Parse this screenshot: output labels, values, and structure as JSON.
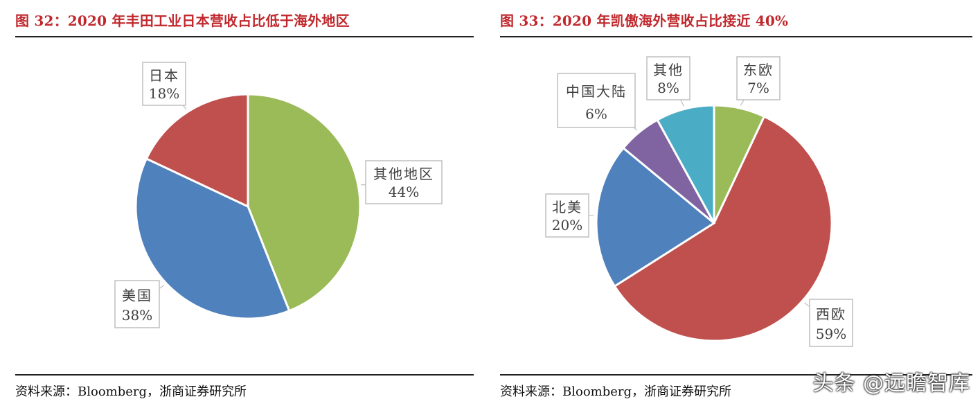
{
  "figures": [
    {
      "title": "图 32：2020 年丰田工业日本营收占比低于海外地区",
      "source": "资料来源：Bloomberg，浙商证券研究所"
    },
    {
      "title": "图 33：2020 年凯傲海外营收占比接近 40%",
      "source": "资料来源：Bloomberg，浙商证券研究所"
    }
  ],
  "chart_data": [
    {
      "type": "pie",
      "title": "图 32：2020 年丰田工业日本营收占比低于海外地区",
      "slices": [
        {
          "label": "其他地区",
          "value": 44,
          "value_label": "44%",
          "color": "#9bbb59"
        },
        {
          "label": "美国",
          "value": 38,
          "value_label": "38%",
          "color": "#4f81bd"
        },
        {
          "label": "日本",
          "value": 18,
          "value_label": "18%",
          "color": "#c0504d"
        }
      ]
    },
    {
      "type": "pie",
      "title": "图 33：2020 年凯傲海外营收占比接近 40%",
      "slices": [
        {
          "label": "东欧",
          "value": 7,
          "value_label": "7%",
          "color": "#9bbb59"
        },
        {
          "label": "西欧",
          "value": 59,
          "value_label": "59%",
          "color": "#c0504d"
        },
        {
          "label": "北美",
          "value": 20,
          "value_label": "20%",
          "color": "#4f81bd"
        },
        {
          "label": "中国大陆",
          "value": 6,
          "value_label": "6%",
          "color": "#8064a2"
        },
        {
          "label": "其他",
          "value": 8,
          "value_label": "8%",
          "color": "#4bacc6"
        }
      ]
    }
  ],
  "watermark": "头条 @远瞻智库"
}
